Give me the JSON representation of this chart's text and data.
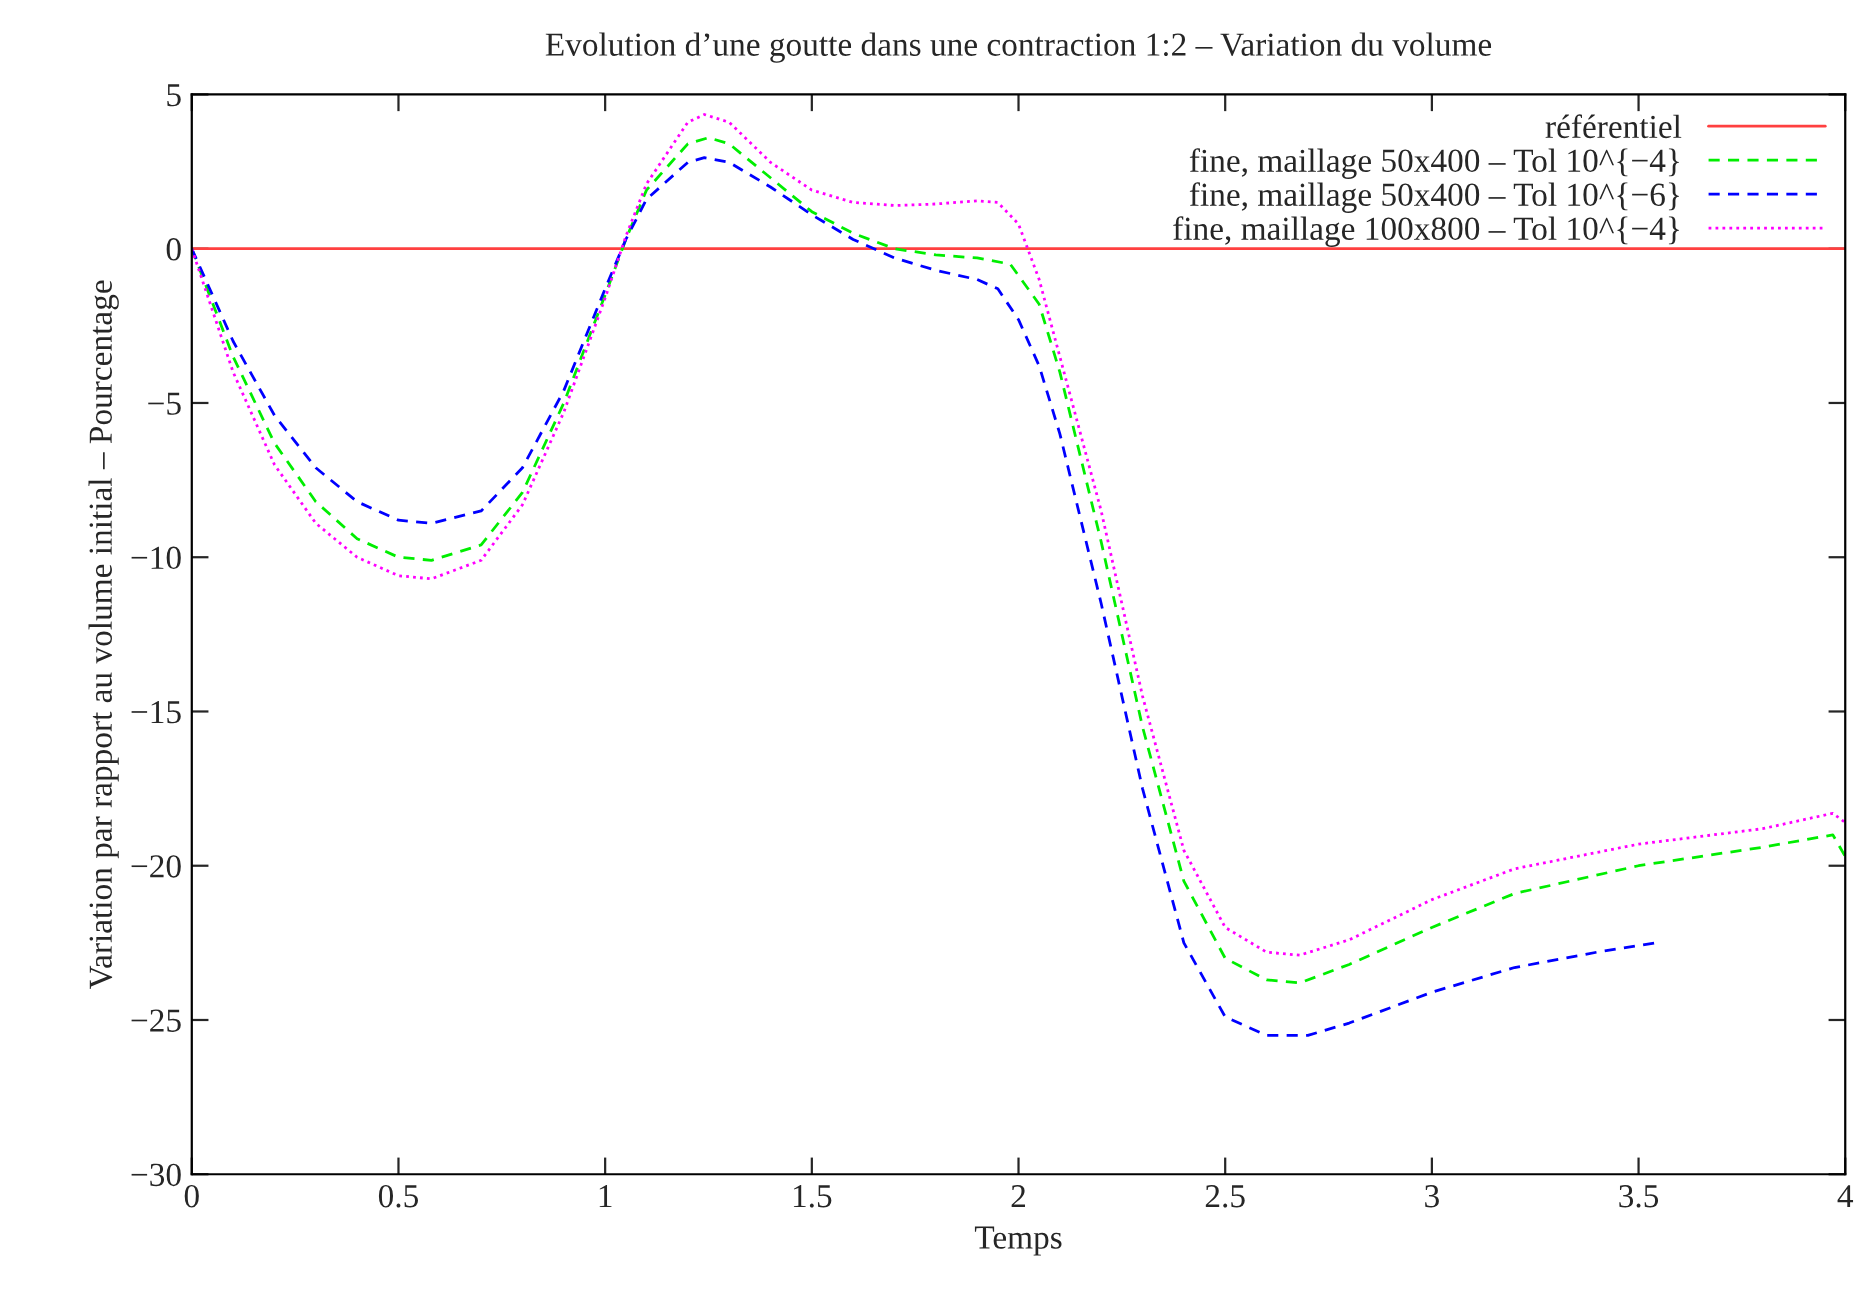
{
  "chart_data": {
    "type": "line",
    "title": "Evolution d’une goutte dans une contraction 1:2 – Variation du volume",
    "xlabel": "Temps",
    "ylabel": "Variation par rapport au volume initial – Pourcentage",
    "xlim": [
      0,
      4
    ],
    "ylim": [
      -30,
      5
    ],
    "xticks": [
      0,
      0.5,
      1,
      1.5,
      2,
      2.5,
      3,
      3.5,
      4
    ],
    "yticks": [
      -30,
      -25,
      -20,
      -15,
      -10,
      -5,
      0,
      5
    ],
    "grid": false,
    "legend": "top right",
    "series": [
      {
        "name": "référentiel",
        "color": "#ff4040",
        "line_style": "solid",
        "x": [
          0,
          4
        ],
        "values": [
          0,
          0
        ]
      },
      {
        "name": "fine, maillage 50x400 – Tol 10^{−4}",
        "color": "#00ee00",
        "line_style": "dashed",
        "x": [
          0,
          0.1,
          0.2,
          0.3,
          0.4,
          0.5,
          0.58,
          0.7,
          0.8,
          0.9,
          1.0,
          1.05,
          1.1,
          1.2,
          1.25,
          1.3,
          1.4,
          1.5,
          1.6,
          1.7,
          1.8,
          1.9,
          1.98,
          2.05,
          2.1,
          2.2,
          2.3,
          2.4,
          2.5,
          2.6,
          2.68,
          2.8,
          3.0,
          3.2,
          3.5,
          3.8,
          3.97,
          4.0
        ],
        "values": [
          0,
          -3.5,
          -6.3,
          -8.2,
          -9.4,
          -10.0,
          -10.1,
          -9.6,
          -7.9,
          -5,
          -1.5,
          0.3,
          1.9,
          3.4,
          3.6,
          3.4,
          2.3,
          1.2,
          0.5,
          0,
          -0.2,
          -0.3,
          -0.5,
          -1.8,
          -4,
          -9.5,
          -15.5,
          -20.5,
          -23,
          -23.7,
          -23.8,
          -23.2,
          -22,
          -20.9,
          -20,
          -19.4,
          -19.0,
          -19.7
        ]
      },
      {
        "name": "fine, maillage 50x400 – Tol 10^{−6}",
        "color": "#0000ff",
        "line_style": "dashed",
        "x": [
          0,
          0.1,
          0.2,
          0.3,
          0.4,
          0.5,
          0.58,
          0.7,
          0.8,
          0.9,
          1.0,
          1.05,
          1.1,
          1.2,
          1.24,
          1.3,
          1.4,
          1.5,
          1.6,
          1.7,
          1.8,
          1.9,
          1.95,
          2.0,
          2.05,
          2.1,
          2.2,
          2.3,
          2.4,
          2.5,
          2.6,
          2.7,
          2.8,
          3.0,
          3.2,
          3.4,
          3.54
        ],
        "values": [
          0,
          -3,
          -5.4,
          -7.1,
          -8.2,
          -8.8,
          -8.9,
          -8.5,
          -7.1,
          -4.6,
          -1.3,
          0.3,
          1.6,
          2.8,
          2.95,
          2.8,
          2.0,
          1.1,
          0.3,
          -0.3,
          -0.7,
          -1.0,
          -1.3,
          -2.3,
          -3.8,
          -6,
          -11.5,
          -17.5,
          -22.5,
          -24.9,
          -25.5,
          -25.5,
          -25.1,
          -24.1,
          -23.3,
          -22.8,
          -22.5
        ]
      },
      {
        "name": "fine, maillage 100x800 – Tol 10^{−4}",
        "color": "#ff00ff",
        "line_style": "dotted",
        "x": [
          0,
          0.1,
          0.2,
          0.3,
          0.4,
          0.5,
          0.58,
          0.7,
          0.8,
          0.9,
          1.0,
          1.05,
          1.1,
          1.2,
          1.24,
          1.3,
          1.4,
          1.5,
          1.6,
          1.7,
          1.8,
          1.9,
          1.95,
          2.0,
          2.05,
          2.1,
          2.2,
          2.3,
          2.4,
          2.5,
          2.6,
          2.68,
          2.8,
          3.0,
          3.2,
          3.5,
          3.8,
          3.97,
          4.0
        ],
        "values": [
          0,
          -4,
          -7,
          -8.9,
          -10,
          -10.6,
          -10.7,
          -10.1,
          -8.3,
          -5.3,
          -1.6,
          0.4,
          2.1,
          4.1,
          4.35,
          4.1,
          2.8,
          1.9,
          1.5,
          1.4,
          1.45,
          1.55,
          1.5,
          0.8,
          -1,
          -3.5,
          -8.5,
          -14.5,
          -19.5,
          -22,
          -22.8,
          -22.9,
          -22.4,
          -21.1,
          -20.1,
          -19.3,
          -18.8,
          -18.3,
          -18.6
        ]
      }
    ]
  }
}
